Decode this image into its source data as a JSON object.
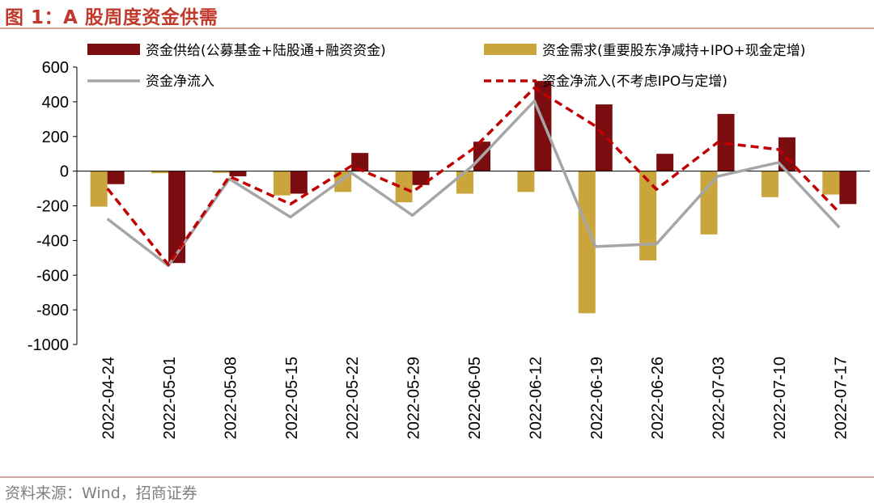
{
  "header": {
    "title": "图 1：A 股周度资金供需"
  },
  "footer": {
    "source": "资料来源：Wind，招商证券"
  },
  "colors": {
    "supply": "#7b0d10",
    "demand": "#c9a53c",
    "net": "#a6a6a6",
    "net_adj": "#c00000",
    "accent": "#c0392b"
  },
  "chart_data": {
    "type": "bar",
    "title": "A 股周度资金供需",
    "xlabel": "",
    "ylabel": "",
    "ylim": [
      -1000,
      600
    ],
    "yticks": [
      600,
      400,
      200,
      0,
      -200,
      -400,
      -600,
      -800,
      -1000
    ],
    "categories": [
      "2022-04-24",
      "2022-05-01",
      "2022-05-08",
      "2022-05-15",
      "2022-05-22",
      "2022-05-29",
      "2022-06-05",
      "2022-06-12",
      "2022-06-19",
      "2022-06-26",
      "2022-07-03",
      "2022-07-10",
      "2022-07-17"
    ],
    "series": [
      {
        "name": "资金需求(重要股东净减持+IPO+现金定增)",
        "kind": "bar",
        "values": [
          -205,
          -12,
          -10,
          -140,
          -120,
          -180,
          -130,
          -120,
          -820,
          -515,
          -365,
          -150,
          -135
        ]
      },
      {
        "name": "资金供给(公募基金+陆股通+融资资金)",
        "kind": "bar",
        "values": [
          -75,
          -530,
          -30,
          -130,
          105,
          -80,
          170,
          520,
          385,
          100,
          330,
          195,
          -190
        ]
      },
      {
        "name": "资金净流入",
        "kind": "line",
        "values": [
          -275,
          -545,
          -45,
          -265,
          -10,
          -255,
          35,
          405,
          -435,
          -420,
          -30,
          50,
          -325
        ]
      },
      {
        "name": "资金净流入(不考虑IPO与定增)",
        "kind": "line",
        "values": [
          -100,
          -540,
          -30,
          -190,
          30,
          -120,
          130,
          480,
          260,
          -105,
          165,
          125,
          -240
        ]
      }
    ],
    "legend": [
      "资金供给(公募基金+陆股通+融资资金)",
      "资金需求(重要股东净减持+IPO+现金定增)",
      "资金净流入",
      "资金净流入(不考虑IPO与定增)"
    ],
    "legend_position": "top"
  }
}
